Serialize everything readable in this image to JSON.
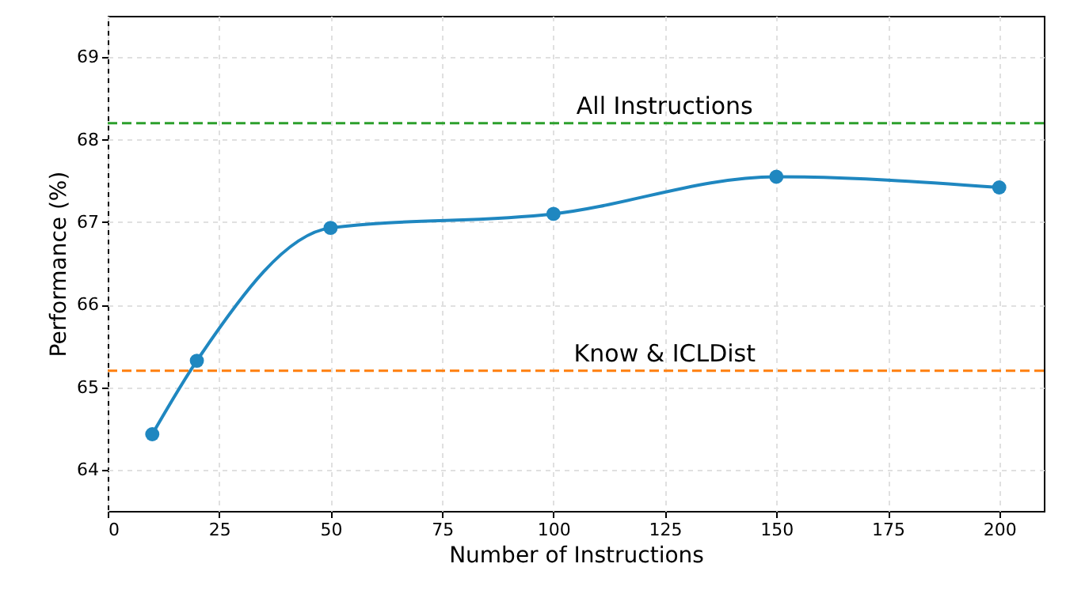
{
  "chart_data": {
    "type": "line",
    "xlabel": "Number of Instructions",
    "ylabel": "Performance (%)",
    "x": [
      10,
      20,
      50,
      100,
      150,
      200
    ],
    "series": [
      {
        "color": "#1f87c0",
        "values": [
          64.43,
          65.32,
          66.93,
          67.1,
          67.55,
          67.42
        ]
      }
    ],
    "xlim": [
      0,
      210
    ],
    "xticks": [
      0,
      25,
      50,
      75,
      100,
      125,
      150,
      175,
      200
    ],
    "ylim": [
      63.5,
      69.5
    ],
    "yticks": [
      64,
      65,
      66,
      67,
      68,
      69
    ],
    "ref_lines": [
      {
        "axis": "y",
        "value": 68.2,
        "label": "All Instructions",
        "color": "#2ca02c",
        "line_style": "dashed"
      },
      {
        "axis": "y",
        "value": 65.2,
        "label": "Know & ICLDist",
        "color": "#ff7f0e",
        "line_style": "dashed"
      }
    ],
    "grid": true,
    "marker": "circle",
    "line_style": "solid"
  }
}
